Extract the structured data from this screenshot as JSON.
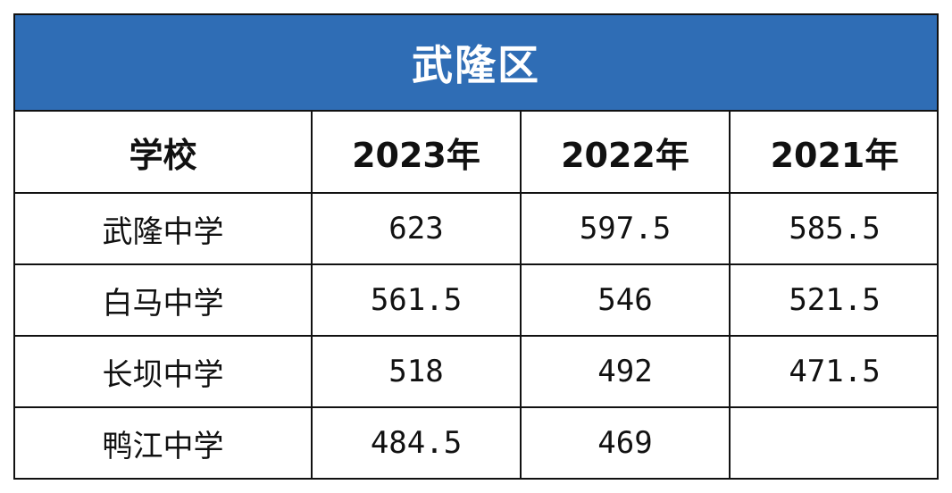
{
  "title": "武隆区",
  "header": {
    "school": "学校",
    "years": [
      "2023年",
      "2022年",
      "2021年"
    ]
  },
  "rows": [
    {
      "school": "武隆中学",
      "values": [
        "623",
        "597.5",
        "585.5"
      ]
    },
    {
      "school": "白马中学",
      "values": [
        "561.5",
        "546",
        "521.5"
      ]
    },
    {
      "school": "长坝中学",
      "values": [
        "518",
        "492",
        "471.5"
      ]
    },
    {
      "school": "鸭江中学",
      "values": [
        "484.5",
        "469",
        ""
      ]
    }
  ],
  "colors": {
    "title_background": "#2f6db5",
    "title_text": "#ffffff",
    "border": "#111111"
  }
}
